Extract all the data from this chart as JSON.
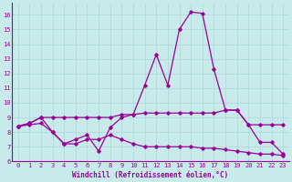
{
  "xlabel": "Windchill (Refroidissement éolien,°C)",
  "bg_color": "#c8eaea",
  "line_color": "#990099",
  "grid_color": "#aad8d8",
  "xlim": [
    -0.5,
    23.5
  ],
  "ylim": [
    6,
    16.8
  ],
  "yticks": [
    6,
    7,
    8,
    9,
    10,
    11,
    12,
    13,
    14,
    15,
    16
  ],
  "xticks": [
    0,
    1,
    2,
    3,
    4,
    5,
    6,
    7,
    8,
    9,
    10,
    11,
    12,
    13,
    14,
    15,
    16,
    17,
    18,
    19,
    20,
    21,
    22,
    23
  ],
  "line1_x": [
    0,
    1,
    2,
    3,
    4,
    5,
    6,
    7,
    8,
    9,
    10,
    11,
    12,
    13,
    14,
    15,
    16,
    17,
    18,
    19,
    20,
    21,
    22,
    23
  ],
  "line1_y": [
    8.4,
    8.6,
    9.0,
    9.0,
    9.0,
    9.0,
    9.0,
    9.0,
    9.0,
    9.2,
    9.2,
    9.3,
    9.3,
    9.3,
    9.3,
    9.3,
    9.3,
    9.3,
    9.5,
    9.5,
    8.5,
    8.5,
    8.5,
    8.5
  ],
  "line2_x": [
    0,
    1,
    2,
    3,
    4,
    5,
    6,
    7,
    8,
    9,
    10,
    11,
    12,
    13,
    14,
    15,
    16,
    17,
    18,
    19,
    20,
    21,
    22,
    23
  ],
  "line2_y": [
    8.4,
    8.6,
    9.0,
    8.0,
    7.2,
    7.5,
    7.8,
    6.7,
    8.3,
    9.0,
    9.2,
    11.2,
    13.3,
    11.2,
    15.0,
    16.2,
    16.1,
    12.3,
    9.5,
    9.5,
    8.5,
    7.3,
    7.3,
    6.5
  ],
  "line3_x": [
    0,
    1,
    2,
    3,
    4,
    5,
    6,
    7,
    8,
    9,
    10,
    11,
    12,
    13,
    14,
    15,
    16,
    17,
    18,
    19,
    20,
    21,
    22,
    23
  ],
  "line3_y": [
    8.4,
    8.5,
    8.6,
    8.0,
    7.2,
    7.2,
    7.5,
    7.5,
    7.8,
    7.5,
    7.2,
    7.0,
    7.0,
    7.0,
    7.0,
    7.0,
    6.9,
    6.9,
    6.8,
    6.7,
    6.6,
    6.5,
    6.5,
    6.4
  ]
}
